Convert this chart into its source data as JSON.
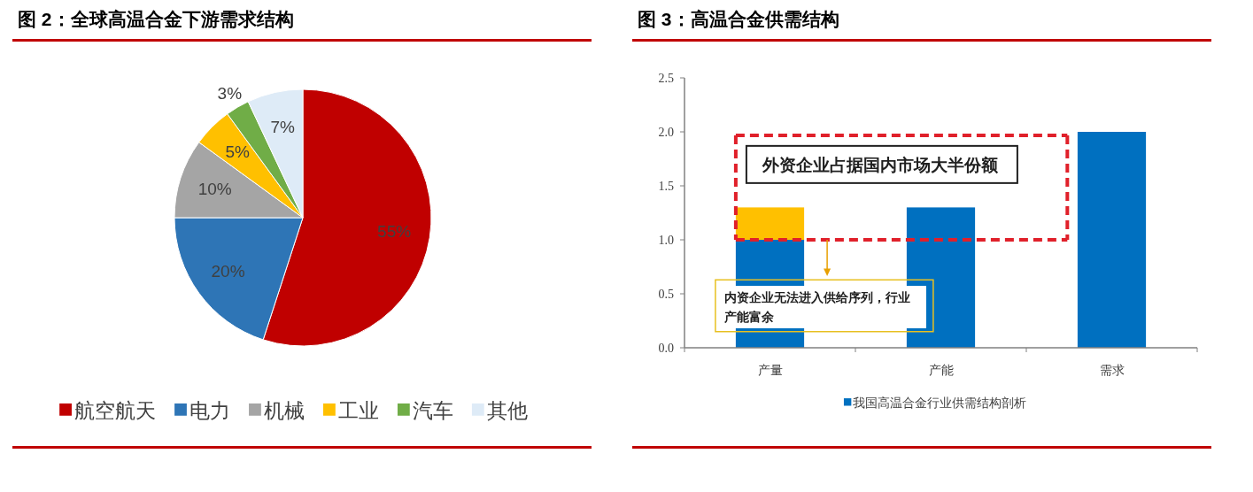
{
  "chart_data": [
    {
      "type": "pie",
      "title": "图 2：全球高温合金下游需求结构",
      "categories": [
        "航空航天",
        "电力",
        "机械",
        "工业",
        "汽车",
        "其他"
      ],
      "values": [
        55,
        20,
        10,
        5,
        3,
        7
      ],
      "colors": [
        "#c00000",
        "#2e75b6",
        "#a5a5a5",
        "#ffc000",
        "#70ad47",
        "#deebf7"
      ],
      "value_labels": [
        "55%",
        "20%",
        "10%",
        "5%",
        "3%",
        "7%"
      ],
      "legend": "bottom"
    },
    {
      "type": "bar",
      "title": "图 3：高温合金供需结构",
      "categories": [
        "产量",
        "产能",
        "需求"
      ],
      "stacked": true,
      "series": [
        {
          "name": "我国高温合金行业供需结构剖析",
          "color": "#0070c0",
          "values": [
            1.0,
            1.3,
            2.0
          ]
        },
        {
          "color": "#ffc000",
          "values": [
            0.3,
            null,
            null
          ]
        }
      ],
      "ylim": [
        0,
        2.5
      ],
      "yticks": [
        {
          "value": 0,
          "label": "0.0"
        },
        {
          "value": 0.5,
          "label": "0.5"
        },
        {
          "value": 1,
          "label": "1.0"
        },
        {
          "value": 1.5,
          "label": "1.5"
        },
        {
          "value": 2,
          "label": "2.0"
        },
        {
          "value": 2.5,
          "label": "2.5"
        }
      ],
      "legend": "bottom",
      "annotations": [
        "外资企业占据国内市场大半份额",
        "内资企业无法进入供给序列，行业产能富余"
      ]
    }
  ]
}
